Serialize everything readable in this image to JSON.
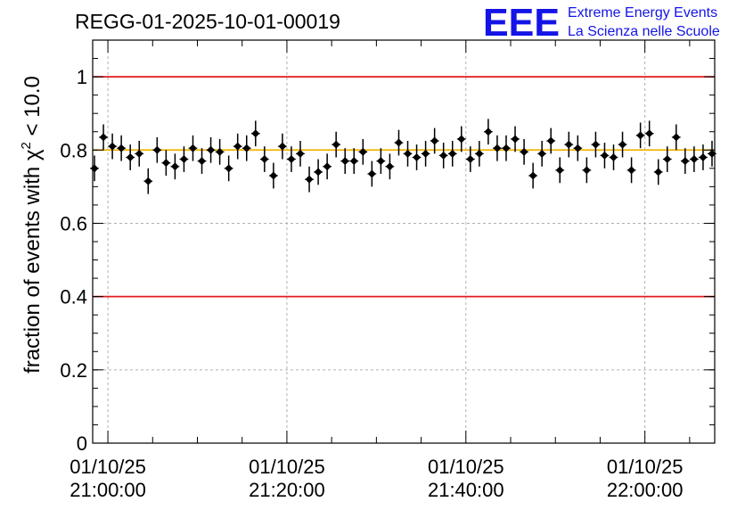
{
  "chart_data": {
    "type": "scatter",
    "title": "REGG-01-2025-10-01-00019",
    "ylabel": {
      "prefix": "fraction of events with ",
      "chi": "χ",
      "sup": "2",
      "suffix": " < 10.0"
    },
    "xlabel": "",
    "ylim": [
      0,
      1.1
    ],
    "yticks": [
      0,
      0.2,
      0.4,
      0.6,
      0.8,
      1
    ],
    "ytick_labels": [
      "0",
      "0.2",
      "0.4",
      "0.6",
      "0.8",
      "1"
    ],
    "xlim_minutes": [
      -1.7,
      67.8
    ],
    "xticks_minutes": [
      0,
      20,
      40,
      60
    ],
    "xtick_labels": [
      {
        "date": "01/10/25",
        "time": "21:00:00"
      },
      {
        "date": "01/10/25",
        "time": "21:20:00"
      },
      {
        "date": "01/10/25",
        "time": "21:40:00"
      },
      {
        "date": "01/10/25",
        "time": "22:00:00"
      }
    ],
    "grid": true,
    "reference_lines": [
      {
        "y": 1.0,
        "color": "#e41a1c"
      },
      {
        "y": 0.4,
        "color": "#e41a1c"
      },
      {
        "y": 0.8,
        "color": "#f0b400"
      }
    ],
    "error": 0.035,
    "series": [
      {
        "name": "fraction",
        "x": [
          -1.5,
          -0.5,
          0.5,
          1.5,
          2.5,
          3.5,
          4.5,
          5.5,
          6.5,
          7.5,
          8.5,
          9.5,
          10.5,
          11.5,
          12.5,
          13.5,
          14.5,
          15.5,
          16.5,
          17.5,
          18.5,
          19.5,
          20.5,
          21.5,
          22.5,
          23.5,
          24.5,
          25.5,
          26.5,
          27.5,
          28.5,
          29.5,
          30.5,
          31.5,
          32.5,
          33.5,
          34.5,
          35.5,
          36.5,
          37.5,
          38.5,
          39.5,
          40.5,
          41.5,
          42.5,
          43.5,
          44.5,
          45.5,
          46.5,
          47.5,
          48.5,
          49.5,
          50.5,
          51.5,
          52.5,
          53.5,
          54.5,
          55.5,
          56.5,
          57.5,
          58.5,
          59.5,
          60.5,
          61.5,
          62.5,
          63.5,
          64.5,
          65.5,
          66.5,
          67.5
        ],
        "values": [
          0.75,
          0.835,
          0.81,
          0.805,
          0.78,
          0.79,
          0.715,
          0.8,
          0.765,
          0.755,
          0.775,
          0.805,
          0.77,
          0.8,
          0.795,
          0.75,
          0.81,
          0.805,
          0.845,
          0.775,
          0.73,
          0.81,
          0.775,
          0.79,
          0.72,
          0.74,
          0.755,
          0.815,
          0.77,
          0.77,
          0.795,
          0.735,
          0.77,
          0.755,
          0.82,
          0.79,
          0.78,
          0.79,
          0.825,
          0.785,
          0.79,
          0.83,
          0.775,
          0.79,
          0.85,
          0.805,
          0.805,
          0.83,
          0.795,
          0.73,
          0.79,
          0.825,
          0.745,
          0.815,
          0.805,
          0.745,
          0.815,
          0.785,
          0.78,
          0.815,
          0.745,
          0.84,
          0.845,
          0.74,
          0.775,
          0.835,
          0.77,
          0.775,
          0.78,
          0.79
        ]
      }
    ]
  },
  "logo": {
    "letters": "EEE",
    "line1": "Extreme Energy Events",
    "line2": "La Scienza nelle Scuole"
  },
  "colors": {
    "logo": "#1414e6",
    "marker": "#000000",
    "grid": "#b0b0b0"
  }
}
